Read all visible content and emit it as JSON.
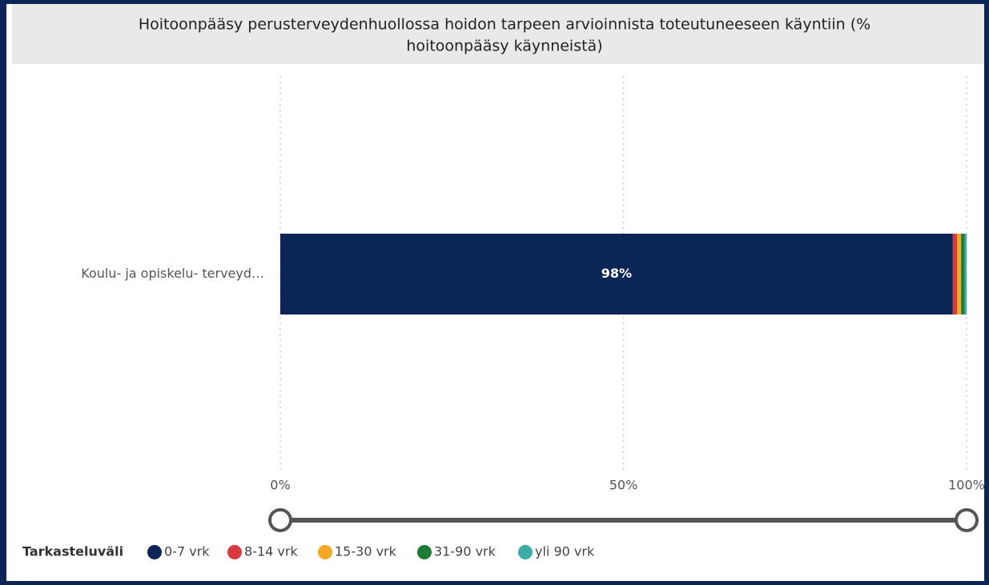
{
  "chart_data": {
    "type": "stacked_bar_horizontal",
    "title": [
      "Hoitoonpääsy perusterveydenhuollossa hoidon tarpeen arvioinnista toteutuneeseen käyntiin (%",
      "hoitoonpääsy käynneistä)"
    ],
    "categories": [
      "Koulu- ja opiskelu- terveyd…"
    ],
    "legend_title": "Tarkasteluväli",
    "series": [
      {
        "name": "0-7 vrk",
        "color": "#0b2556",
        "values": [
          98
        ],
        "value_labels": [
          "98%"
        ]
      },
      {
        "name": "8-14 vrk",
        "color": "#d9393f",
        "values": [
          0.6
        ]
      },
      {
        "name": "15-30 vrk",
        "color": "#f5a623",
        "values": [
          0.6
        ]
      },
      {
        "name": "31-90 vrk",
        "color": "#1e7b34",
        "values": [
          0.5
        ]
      },
      {
        "name": "yli 90 vrk",
        "color": "#3aaea5",
        "values": [
          0.3
        ]
      }
    ],
    "xlim": [
      0,
      100
    ],
    "xticks": [
      {
        "value": 0,
        "label": "0%"
      },
      {
        "value": 50,
        "label": "50%"
      },
      {
        "value": 100,
        "label": "100%"
      }
    ],
    "grid": true
  }
}
